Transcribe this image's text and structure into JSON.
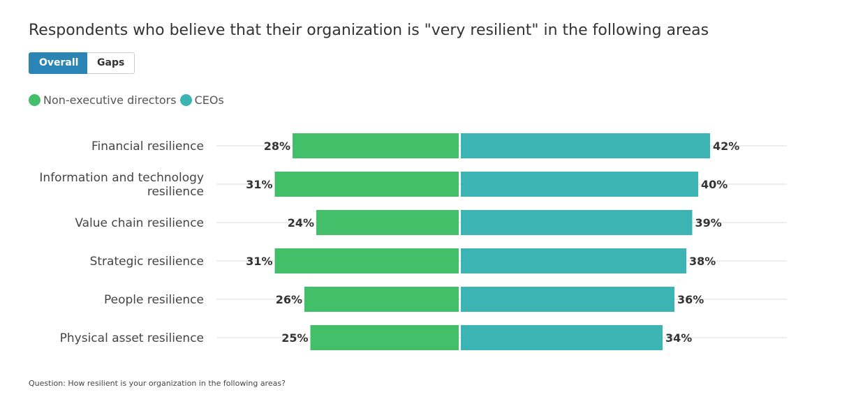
{
  "chart_data": {
    "type": "bar",
    "orientation": "horizontal-diverging",
    "title": "Respondents who believe that their organization is \"very resilient\" in the following areas",
    "categories": [
      "Financial resilience",
      "Information and technology resilience",
      "Value chain resilience",
      "Strategic resilience",
      "People resilience",
      "Physical asset resilience"
    ],
    "series": [
      {
        "name": "Non-executive directors",
        "color": "#42bf68",
        "values": [
          28,
          31,
          24,
          31,
          26,
          25
        ]
      },
      {
        "name": "CEOs",
        "color": "#3cb4b4",
        "values": [
          42,
          40,
          39,
          38,
          36,
          34
        ]
      }
    ],
    "value_suffix": "%",
    "legend": "top-left",
    "grid": true
  },
  "toggle": {
    "overall": "Overall",
    "gaps": "Gaps",
    "active": "Overall",
    "active_color": "#2b85b4"
  },
  "footnote": "Question: How resilient is your organization in the following areas?"
}
